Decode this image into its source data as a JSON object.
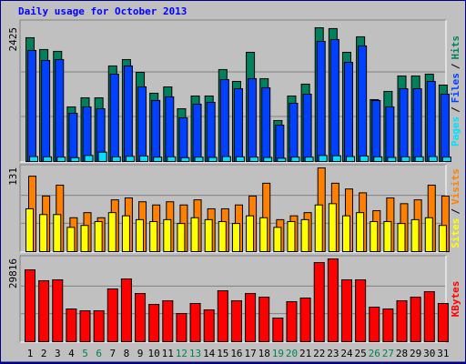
{
  "title": "Daily usage for October 2013",
  "legend_separator": "/",
  "chart_data": [
    {
      "type": "bar",
      "ylim": [
        0,
        2425
      ],
      "yticks": [
        2425
      ],
      "grid": true,
      "series": [
        {
          "name": "Hits",
          "color": "#00805c",
          "values": [
            2244,
            2030,
            1997,
            990,
            1155,
            1155,
            1733,
            1848,
            1617,
            1238,
            1353,
            957,
            1188,
            1188,
            1667,
            1452,
            1980,
            1502,
            743,
            1188,
            1403,
            2425,
            2410,
            1980,
            2261,
            1122,
            1271,
            1551,
            1551,
            1584,
            1386
          ]
        },
        {
          "name": "Files",
          "color": "#0040ff",
          "values": [
            2013,
            1832,
            1848,
            875,
            990,
            957,
            1584,
            1733,
            1353,
            1106,
            1172,
            792,
            1040,
            1073,
            1485,
            1320,
            1502,
            1337,
            660,
            1056,
            1221,
            2178,
            2211,
            1799,
            2096,
            1106,
            990,
            1320,
            1320,
            1452,
            1221
          ]
        },
        {
          "name": "Pages",
          "color": "#00e0ff",
          "values": [
            90,
            85,
            80,
            70,
            110,
            170,
            85,
            95,
            100,
            80,
            85,
            70,
            80,
            75,
            90,
            85,
            80,
            75,
            60,
            80,
            80,
            110,
            105,
            90,
            100,
            85,
            75,
            85,
            85,
            90,
            80
          ]
        }
      ]
    },
    {
      "type": "bar",
      "ylim": [
        0,
        131
      ],
      "yticks": [
        131
      ],
      "grid": true,
      "series": [
        {
          "name": "Visits",
          "color": "#ff8000",
          "values": [
            118,
            87,
            104,
            53,
            61,
            53,
            81,
            84,
            78,
            73,
            78,
            73,
            81,
            67,
            67,
            73,
            87,
            107,
            50,
            56,
            61,
            131,
            107,
            98,
            92,
            64,
            84,
            75,
            81,
            104,
            87
          ]
        },
        {
          "name": "Sites",
          "color": "#ffff00",
          "values": [
            67,
            58,
            58,
            38,
            41,
            47,
            61,
            56,
            50,
            47,
            50,
            44,
            53,
            50,
            47,
            44,
            56,
            53,
            38,
            47,
            50,
            73,
            75,
            56,
            61,
            47,
            47,
            44,
            50,
            53,
            41
          ]
        }
      ]
    },
    {
      "type": "bar",
      "ylim": [
        0,
        29816
      ],
      "yticks": [
        29816
      ],
      "grid": true,
      "categories": [
        "1",
        "2",
        "3",
        "4",
        "5",
        "6",
        "7",
        "8",
        "9",
        "10",
        "11",
        "12",
        "13",
        "14",
        "15",
        "16",
        "17",
        "18",
        "19",
        "20",
        "21",
        "22",
        "23",
        "24",
        "25",
        "26",
        "27",
        "28",
        "29",
        "30",
        "31"
      ],
      "category_colors": [
        "#000000",
        "#000000",
        "#000000",
        "#000000",
        "#00805c",
        "#00805c",
        "#000000",
        "#000000",
        "#000000",
        "#000000",
        "#000000",
        "#00805c",
        "#00805c",
        "#000000",
        "#000000",
        "#000000",
        "#000000",
        "#000000",
        "#00805c",
        "#00805c",
        "#000000",
        "#000000",
        "#000000",
        "#000000",
        "#000000",
        "#00805c",
        "#00805c",
        "#000000",
        "#000000",
        "#000000",
        "#000000"
      ],
      "series": [
        {
          "name": "KBytes",
          "color": "#ff0000",
          "values": [
            25880,
            21950,
            22280,
            11790,
            11140,
            11140,
            19000,
            22600,
            17360,
            13430,
            14740,
            10160,
            13760,
            11470,
            18350,
            14740,
            17360,
            16050,
            8520,
            14410,
            15720,
            28500,
            29816,
            22280,
            22280,
            12450,
            11790,
            14740,
            16050,
            18020,
            13760
          ]
        }
      ]
    }
  ]
}
